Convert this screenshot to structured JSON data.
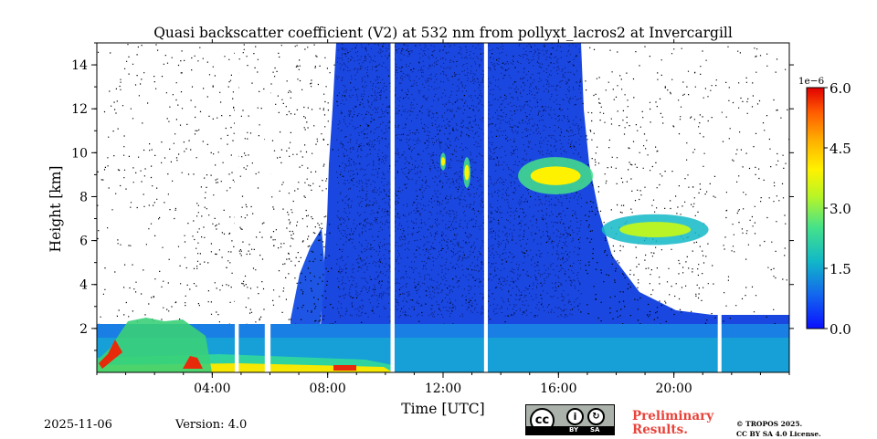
{
  "chart_data": {
    "type": "heatmap",
    "title": "Quasi backscatter coefficient (V2) at 532 nm from pollyxt_lacros2 at Invercargill",
    "xlabel": "Time [UTC]",
    "ylabel": "Height [km]",
    "xlim_hours": [
      0,
      24
    ],
    "ylim_km": [
      0,
      15
    ],
    "x_ticks": [
      {
        "value": 4,
        "label": "04:00"
      },
      {
        "value": 8,
        "label": "08:00"
      },
      {
        "value": 12,
        "label": "12:00"
      },
      {
        "value": 16,
        "label": "16:00"
      },
      {
        "value": 20,
        "label": "20:00"
      }
    ],
    "y_ticks": [
      {
        "value": 2,
        "label": "2"
      },
      {
        "value": 4,
        "label": "4"
      },
      {
        "value": 6,
        "label": "6"
      },
      {
        "value": 8,
        "label": "8"
      },
      {
        "value": 10,
        "label": "10"
      },
      {
        "value": 12,
        "label": "12"
      },
      {
        "value": 14,
        "label": "14"
      }
    ],
    "colorbar": {
      "range": [
        0.0,
        6.0
      ],
      "scale_label": "1e−6",
      "ticks": [
        {
          "value": 0.0,
          "label": "0.0"
        },
        {
          "value": 1.5,
          "label": "1.5"
        },
        {
          "value": 3.0,
          "label": "3.0"
        },
        {
          "value": 4.5,
          "label": "4.5"
        },
        {
          "value": 6.0,
          "label": "6.0"
        }
      ],
      "colors": [
        "#0a10ff",
        "#1366ee",
        "#12b8c7",
        "#45e28a",
        "#b9f526",
        "#fff200",
        "#ffb000",
        "#ff5a00",
        "#e00000"
      ]
    },
    "data_gaps_hours": [
      [
        4.78,
        4.92
      ],
      [
        5.82,
        6.02
      ],
      [
        10.18,
        10.32
      ],
      [
        13.42,
        13.55
      ],
      [
        21.52,
        21.65
      ]
    ],
    "regions": [
      {
        "name": "boundary-layer",
        "t": [
          0,
          24
        ],
        "h": [
          0,
          2.0
        ],
        "value": 1.2
      },
      {
        "name": "surface-layer",
        "t": [
          0,
          10
        ],
        "h": [
          0,
          0.3
        ],
        "value": 3.5
      },
      {
        "name": "cloud-11h",
        "t": [
          11.9,
          12.1
        ],
        "h": [
          9.2,
          10.0
        ],
        "value": 3.6
      },
      {
        "name": "cloud-13h",
        "t": [
          12.7,
          12.95
        ],
        "h": [
          8.4,
          9.8
        ],
        "value": 3.8
      },
      {
        "name": "cirrus-15h",
        "t": [
          14.6,
          17.2
        ],
        "h": [
          8.1,
          9.8
        ],
        "value": 4.0
      },
      {
        "name": "cirrus-18h",
        "t": [
          17.5,
          21.2
        ],
        "h": [
          5.8,
          7.2
        ],
        "value": 3.0
      }
    ]
  },
  "footer": {
    "date": "2025-11-06",
    "version": "Version: 4.0",
    "preliminary_line1": "Preliminary",
    "preliminary_line2": "Results.",
    "copyright_line1": "© TROPOS 2025.",
    "copyright_line2": "CC BY SA 4.0 License.",
    "badge_by": "BY",
    "badge_sa": "SA"
  }
}
